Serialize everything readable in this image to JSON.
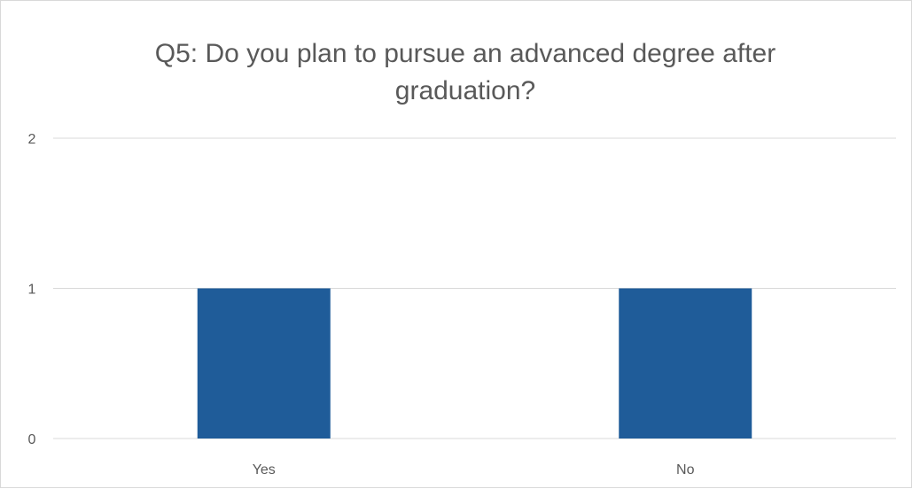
{
  "chart_data": {
    "type": "bar",
    "title": "Q5: Do you plan to pursue an advanced degree after graduation?",
    "title_lines": [
      "Q5: Do you plan to pursue an advanced degree after",
      "graduation?"
    ],
    "categories": [
      "Yes",
      "No"
    ],
    "values": [
      1,
      1
    ],
    "ylim": [
      0,
      2
    ],
    "yticks": [
      0,
      1,
      2
    ],
    "xlabel": "",
    "ylabel": "",
    "grid": true,
    "legend": "none",
    "bar_color": "#1f5c99",
    "grid_color": "#d9d9d9",
    "text_color": "#595959"
  }
}
